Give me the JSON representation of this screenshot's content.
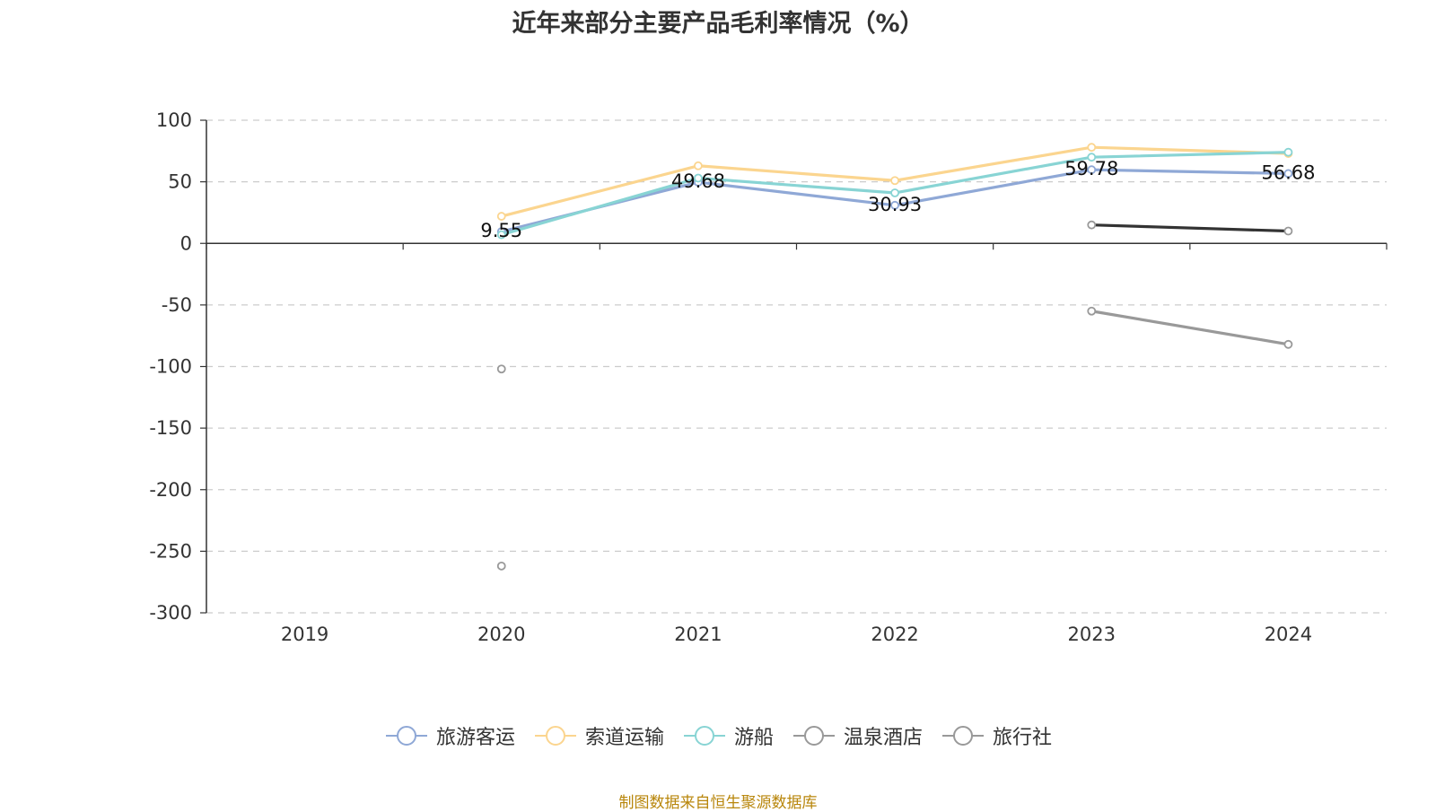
{
  "chart_data": {
    "type": "line",
    "title": "近年来部分主要产品毛利率情况（%）",
    "categories": [
      "2019",
      "2020",
      "2021",
      "2022",
      "2023",
      "2024"
    ],
    "ylim": [
      -300,
      100
    ],
    "yticks": [
      100,
      50,
      0,
      -50,
      -100,
      -150,
      -200,
      -250,
      -300
    ],
    "grid": true,
    "legend_position": "bottom",
    "series": [
      {
        "name": "旅游客运",
        "color": "#8fa8d6",
        "values": [
          null,
          9.55,
          49.68,
          30.93,
          59.78,
          56.68
        ],
        "labels": [
          null,
          "9.55",
          "49.68",
          "30.93",
          "59.78",
          "56.68"
        ]
      },
      {
        "name": "索道运输",
        "color": "#fbd58f",
        "values": [
          null,
          22,
          63,
          51,
          78,
          73
        ],
        "labels": []
      },
      {
        "name": "游船",
        "color": "#88d4d4",
        "values": [
          null,
          7,
          53,
          41,
          70,
          74
        ],
        "labels": []
      },
      {
        "name": "温泉酒店",
        "color": "#333333",
        "marker_color": "#999999",
        "values": [
          null,
          -102,
          null,
          null,
          15,
          10
        ],
        "labels": []
      },
      {
        "name": "旅行社",
        "color": "#999999",
        "values": [
          null,
          -262,
          null,
          null,
          -55,
          -82
        ],
        "labels": []
      }
    ]
  },
  "legend_icon_colors": [
    "#8fa8d6",
    "#fbd58f",
    "#88d4d4",
    "#999999",
    "#999999"
  ],
  "source_note": "制图数据来自恒生聚源数据库"
}
